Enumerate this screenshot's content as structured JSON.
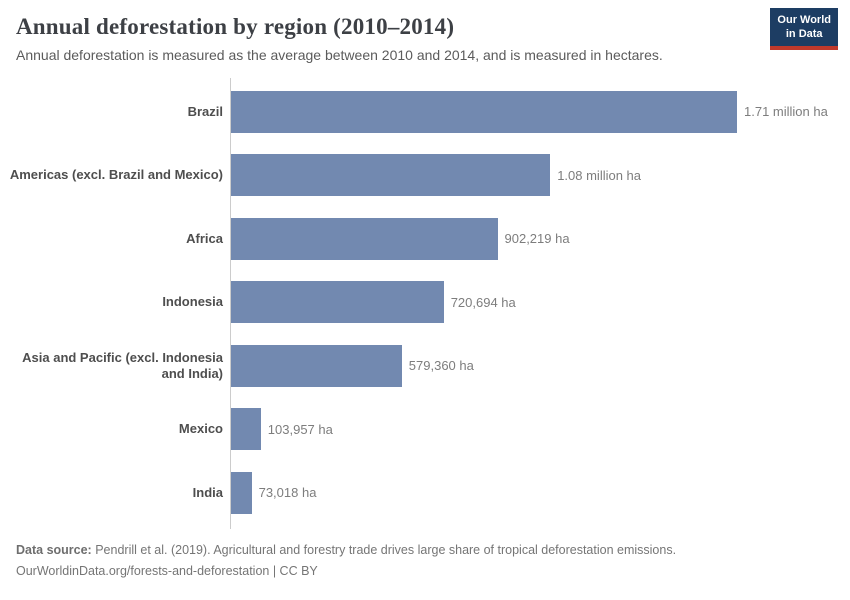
{
  "header": {
    "title": "Annual deforestation by region (2010–2014)",
    "subtitle": "Annual deforestation is measured as the average between 2010 and 2014, and is measured in hectares.",
    "logo": {
      "line1": "Our World",
      "line2": "in Data"
    }
  },
  "chart_data": {
    "type": "bar",
    "orientation": "horizontal",
    "title": "Annual deforestation by region (2010–2014)",
    "unit": "hectares",
    "categories": [
      "Brazil",
      "Americas (excl. Brazil and Mexico)",
      "Africa",
      "Indonesia",
      "Asia and Pacific (excl. Indonesia and India)",
      "Mexico",
      "India"
    ],
    "values": [
      1710000,
      1080000,
      902219,
      720694,
      579360,
      103957,
      73018
    ],
    "value_labels": [
      "1.71 million ha",
      "1.08 million ha",
      "902,219 ha",
      "720,694 ha",
      "579,360 ha",
      "103,957 ha",
      "73,018 ha"
    ],
    "xlim": [
      0,
      1710000
    ],
    "grid": false,
    "legend": "none",
    "bar_color": "#7289b0",
    "axis_color": "#cccccc"
  },
  "footer": {
    "source_label": "Data source:",
    "source_text": "Pendrill et al. (2019). Agricultural and forestry trade drives large share of tropical deforestation emissions.",
    "citation": "OurWorldinData.org/forests-and-deforestation | CC BY"
  },
  "colors": {
    "logo_navy": "#1d3d63",
    "logo_red": "#c0392b",
    "bar": "#7289b0"
  }
}
